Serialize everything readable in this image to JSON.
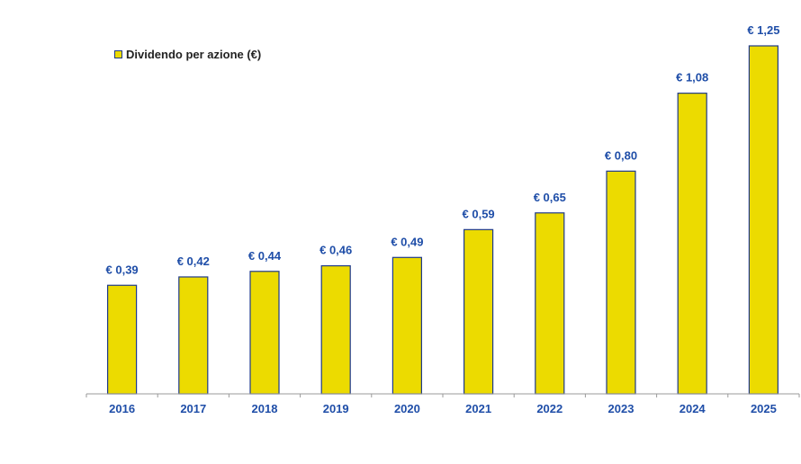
{
  "chart_data": {
    "type": "bar",
    "categories": [
      "2016",
      "2017",
      "2018",
      "2019",
      "2020",
      "2021",
      "2022",
      "2023",
      "2024",
      "2025"
    ],
    "series": [
      {
        "name": "Dividendo per azione (€)",
        "values": [
          0.39,
          0.42,
          0.44,
          0.46,
          0.49,
          0.59,
          0.65,
          0.8,
          1.08,
          1.25
        ],
        "data_labels": [
          "€ 0,39",
          "€ 0,42",
          "€ 0,44",
          "€ 0,46",
          "€ 0,49",
          "€ 0,59",
          "€ 0,65",
          "€ 0,80",
          "€ 1,08",
          "€ 1,25"
        ]
      }
    ],
    "legend_position": "top-left",
    "grid": false,
    "ylim": [
      0,
      1.25
    ],
    "colors": {
      "bar_fill": "#ecdb00",
      "bar_stroke": "#1f3a8a",
      "label_text": "#1f4ea8",
      "axis": "#9a9a9a"
    }
  }
}
